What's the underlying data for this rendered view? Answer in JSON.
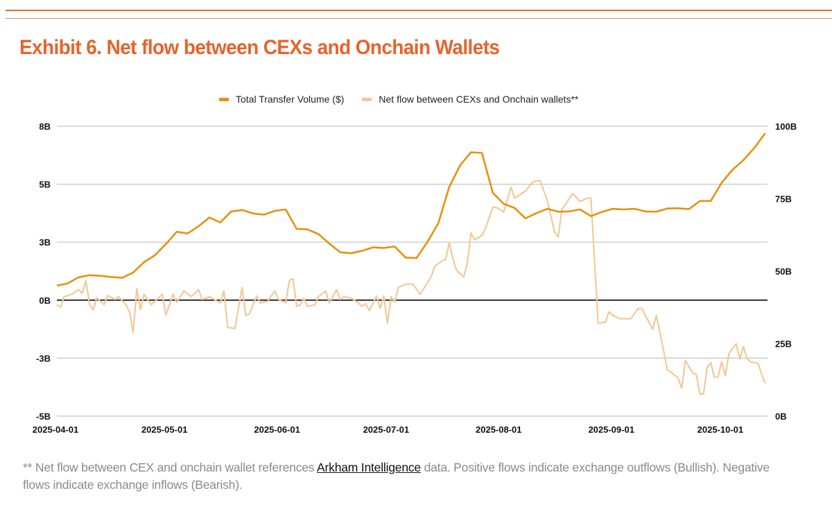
{
  "header": {
    "title": "Exhibit 6. Net flow between CEXs and Onchain Wallets"
  },
  "footer": {
    "prefix": "** Net flow between CEX and onchain wallet references ",
    "link_text": "Arkham Intelligence",
    "suffix": " data. Positive flows indicate exchange outflows (Bullish). Negative flows indicate exchange inflows (Bearish)."
  },
  "chart_data": {
    "type": "line",
    "title": "",
    "xlabel": "",
    "ylabel": "",
    "xlim": [
      "2025-04-01",
      "2025-10-14"
    ],
    "x_ticks": [
      "2025-04-01",
      "2025-05-01",
      "2025-06-01",
      "2025-07-01",
      "2025-08-01",
      "2025-09-01",
      "2025-10-01"
    ],
    "y_left": {
      "lim": [
        -5,
        7.5
      ],
      "ticks": [
        7.5,
        5,
        2.5,
        0,
        -2.5,
        -5
      ],
      "tick_labels": [
        "8B",
        "5B",
        "3B",
        "0B",
        "-3B",
        "-5B"
      ],
      "unit": "B"
    },
    "y_right": {
      "lim": [
        0,
        100
      ],
      "ticks": [
        100,
        75,
        50,
        25,
        0
      ],
      "tick_labels": [
        "100B",
        "75B",
        "50B",
        "25B",
        "0B"
      ],
      "unit": "B"
    },
    "grid": true,
    "zero_line": true,
    "legend_position": "top",
    "series": [
      {
        "name": "Total Transfer Volume ($)",
        "axis": "right",
        "color": "#e8900c",
        "points": [
          [
            "2025-04-01",
            45.0
          ],
          [
            "2025-04-04",
            45.8
          ],
          [
            "2025-04-07",
            47.9
          ],
          [
            "2025-04-10",
            48.6
          ],
          [
            "2025-04-13",
            48.4
          ],
          [
            "2025-04-16",
            48.0
          ],
          [
            "2025-04-19",
            47.7
          ],
          [
            "2025-04-22",
            49.5
          ],
          [
            "2025-04-25",
            53.1
          ],
          [
            "2025-04-28",
            55.5
          ],
          [
            "2025-05-01",
            59.3
          ],
          [
            "2025-05-04",
            63.6
          ],
          [
            "2025-05-07",
            63.0
          ],
          [
            "2025-05-10",
            65.5
          ],
          [
            "2025-05-13",
            68.5
          ],
          [
            "2025-05-16",
            66.8
          ],
          [
            "2025-05-19",
            70.6
          ],
          [
            "2025-05-22",
            71.1
          ],
          [
            "2025-05-25",
            69.9
          ],
          [
            "2025-05-28",
            69.5
          ],
          [
            "2025-05-31",
            70.8
          ],
          [
            "2025-06-03",
            71.3
          ],
          [
            "2025-06-06",
            64.6
          ],
          [
            "2025-06-09",
            64.4
          ],
          [
            "2025-06-12",
            62.8
          ],
          [
            "2025-06-15",
            59.5
          ],
          [
            "2025-06-18",
            56.5
          ],
          [
            "2025-06-21",
            56.2
          ],
          [
            "2025-06-24",
            57.0
          ],
          [
            "2025-06-27",
            58.2
          ],
          [
            "2025-06-30",
            58.0
          ],
          [
            "2025-07-03",
            58.5
          ],
          [
            "2025-07-06",
            54.7
          ],
          [
            "2025-07-09",
            54.5
          ],
          [
            "2025-07-12",
            60.1
          ],
          [
            "2025-07-15",
            66.5
          ],
          [
            "2025-07-18",
            79.0
          ],
          [
            "2025-07-21",
            86.5
          ],
          [
            "2025-07-24",
            91.0
          ],
          [
            "2025-07-27",
            90.8
          ],
          [
            "2025-07-30",
            77.0
          ],
          [
            "2025-08-02",
            73.2
          ],
          [
            "2025-08-05",
            71.8
          ],
          [
            "2025-08-08",
            68.2
          ],
          [
            "2025-08-11",
            70.0
          ],
          [
            "2025-08-14",
            71.5
          ],
          [
            "2025-08-17",
            70.5
          ],
          [
            "2025-08-20",
            70.6
          ],
          [
            "2025-08-23",
            71.3
          ],
          [
            "2025-08-26",
            69.0
          ],
          [
            "2025-08-29",
            70.4
          ],
          [
            "2025-09-01",
            71.5
          ],
          [
            "2025-09-04",
            71.3
          ],
          [
            "2025-09-07",
            71.5
          ],
          [
            "2025-09-10",
            70.6
          ],
          [
            "2025-09-13",
            70.5
          ],
          [
            "2025-09-16",
            71.6
          ],
          [
            "2025-09-19",
            71.7
          ],
          [
            "2025-09-22",
            71.4
          ],
          [
            "2025-09-25",
            74.2
          ],
          [
            "2025-09-28",
            74.2
          ],
          [
            "2025-10-01",
            80.5
          ],
          [
            "2025-10-04",
            85.0
          ],
          [
            "2025-10-07",
            88.3
          ],
          [
            "2025-10-10",
            92.5
          ],
          [
            "2025-10-13",
            97.6
          ]
        ]
      },
      {
        "name": "Net flow between CEXs and Onchain wallets**",
        "axis": "left",
        "color": "#f3c899",
        "points": [
          [
            "2025-04-01",
            -0.2
          ],
          [
            "2025-04-02",
            -0.3
          ],
          [
            "2025-04-03",
            0.15
          ],
          [
            "2025-04-05",
            0.25
          ],
          [
            "2025-04-07",
            0.45
          ],
          [
            "2025-04-08",
            0.3
          ],
          [
            "2025-04-09",
            0.84
          ],
          [
            "2025-04-10",
            -0.2
          ],
          [
            "2025-04-11",
            -0.42
          ],
          [
            "2025-04-12",
            0.1
          ],
          [
            "2025-04-14",
            -0.2
          ],
          [
            "2025-04-15",
            0.2
          ],
          [
            "2025-04-17",
            0.03
          ],
          [
            "2025-04-18",
            0.15
          ],
          [
            "2025-04-20",
            -0.2
          ],
          [
            "2025-04-21",
            -0.5
          ],
          [
            "2025-04-22",
            -1.4
          ],
          [
            "2025-04-23",
            0.5
          ],
          [
            "2025-04-24",
            -0.4
          ],
          [
            "2025-04-25",
            0.25
          ],
          [
            "2025-04-27",
            -0.2
          ],
          [
            "2025-04-30",
            0.25
          ],
          [
            "2025-05-01",
            -0.65
          ],
          [
            "2025-05-03",
            0.25
          ],
          [
            "2025-05-04",
            -0.1
          ],
          [
            "2025-05-06",
            0.4
          ],
          [
            "2025-05-08",
            0.15
          ],
          [
            "2025-05-10",
            0.45
          ],
          [
            "2025-05-11",
            0.03
          ],
          [
            "2025-05-13",
            0.15
          ],
          [
            "2025-05-16",
            -0.12
          ],
          [
            "2025-05-17",
            0.4
          ],
          [
            "2025-05-18",
            -1.17
          ],
          [
            "2025-05-20",
            -1.23
          ],
          [
            "2025-05-22",
            0.54
          ],
          [
            "2025-05-23",
            -0.66
          ],
          [
            "2025-05-24",
            -0.6
          ],
          [
            "2025-05-26",
            0.18
          ],
          [
            "2025-05-27",
            -0.12
          ],
          [
            "2025-05-29",
            -0.06
          ],
          [
            "2025-05-30",
            0.18
          ],
          [
            "2025-05-31",
            0.4
          ],
          [
            "2025-06-01",
            0.03
          ],
          [
            "2025-06-03",
            -0.12
          ],
          [
            "2025-06-04",
            0.84
          ],
          [
            "2025-06-05",
            0.93
          ],
          [
            "2025-06-06",
            -0.27
          ],
          [
            "2025-06-07",
            -0.21
          ],
          [
            "2025-06-08",
            0.09
          ],
          [
            "2025-06-09",
            -0.27
          ],
          [
            "2025-06-11",
            -0.21
          ],
          [
            "2025-06-12",
            0.15
          ],
          [
            "2025-06-14",
            0.39
          ],
          [
            "2025-06-15",
            -0.12
          ],
          [
            "2025-06-17",
            0.45
          ],
          [
            "2025-06-18",
            0.03
          ],
          [
            "2025-06-19",
            0.15
          ],
          [
            "2025-06-21",
            0.09
          ],
          [
            "2025-06-23",
            -0.12
          ],
          [
            "2025-06-24",
            -0.27
          ],
          [
            "2025-06-25",
            -0.15
          ],
          [
            "2025-06-26",
            -0.45
          ],
          [
            "2025-06-28",
            0.18
          ],
          [
            "2025-06-29",
            -0.36
          ],
          [
            "2025-06-30",
            0.18
          ],
          [
            "2025-07-01",
            -1.0
          ],
          [
            "2025-07-02",
            0.15
          ],
          [
            "2025-07-03",
            -0.09
          ],
          [
            "2025-07-04",
            0.54
          ],
          [
            "2025-07-06",
            0.69
          ],
          [
            "2025-07-08",
            0.69
          ],
          [
            "2025-07-10",
            0.25
          ],
          [
            "2025-07-11",
            0.5
          ],
          [
            "2025-07-13",
            1.0
          ],
          [
            "2025-07-14",
            1.44
          ],
          [
            "2025-07-16",
            1.7
          ],
          [
            "2025-07-17",
            1.75
          ],
          [
            "2025-07-18",
            2.48
          ],
          [
            "2025-07-19",
            1.8
          ],
          [
            "2025-07-20",
            1.29
          ],
          [
            "2025-07-22",
            1.0
          ],
          [
            "2025-07-23",
            1.6
          ],
          [
            "2025-07-24",
            2.9
          ],
          [
            "2025-07-25",
            2.6
          ],
          [
            "2025-07-27",
            2.8
          ],
          [
            "2025-07-28",
            3.1
          ],
          [
            "2025-07-30",
            4.0
          ],
          [
            "2025-07-31",
            4.0
          ],
          [
            "2025-08-02",
            3.8
          ],
          [
            "2025-08-04",
            4.87
          ],
          [
            "2025-08-05",
            4.4
          ],
          [
            "2025-08-08",
            4.7
          ],
          [
            "2025-08-10",
            5.1
          ],
          [
            "2025-08-12",
            5.17
          ],
          [
            "2025-08-14",
            4.3
          ],
          [
            "2025-08-16",
            2.93
          ],
          [
            "2025-08-17",
            2.72
          ],
          [
            "2025-08-18",
            3.9
          ],
          [
            "2025-08-21",
            4.6
          ],
          [
            "2025-08-23",
            4.25
          ],
          [
            "2025-08-25",
            4.4
          ],
          [
            "2025-08-26",
            4.4
          ],
          [
            "2025-08-28",
            -1.0
          ],
          [
            "2025-08-30",
            -0.95
          ],
          [
            "2025-08-31",
            -0.5
          ],
          [
            "2025-09-01",
            -0.66
          ],
          [
            "2025-09-03",
            -0.8
          ],
          [
            "2025-09-06",
            -0.8
          ],
          [
            "2025-09-08",
            -0.36
          ],
          [
            "2025-09-09",
            -0.36
          ],
          [
            "2025-09-11",
            -0.96
          ],
          [
            "2025-09-12",
            -1.25
          ],
          [
            "2025-09-13",
            -0.66
          ],
          [
            "2025-09-14",
            -1.4
          ],
          [
            "2025-09-15",
            -2.15
          ],
          [
            "2025-09-16",
            -3.0
          ],
          [
            "2025-09-17",
            -3.11
          ],
          [
            "2025-09-19",
            -3.35
          ],
          [
            "2025-09-20",
            -3.8
          ],
          [
            "2025-09-21",
            -2.6
          ],
          [
            "2025-09-23",
            -3.14
          ],
          [
            "2025-09-24",
            -3.2
          ],
          [
            "2025-09-25",
            -4.04
          ],
          [
            "2025-09-26",
            -4.04
          ],
          [
            "2025-09-27",
            -2.9
          ],
          [
            "2025-09-28",
            -2.7
          ],
          [
            "2025-09-29",
            -3.32
          ],
          [
            "2025-09-30",
            -3.32
          ],
          [
            "2025-10-01",
            -2.66
          ],
          [
            "2025-10-02",
            -3.26
          ],
          [
            "2025-10-03",
            -2.3
          ],
          [
            "2025-10-05",
            -1.88
          ],
          [
            "2025-10-06",
            -2.54
          ],
          [
            "2025-10-07",
            -2.0
          ],
          [
            "2025-10-08",
            -2.54
          ],
          [
            "2025-10-09",
            -2.66
          ],
          [
            "2025-10-11",
            -2.72
          ],
          [
            "2025-10-12",
            -3.2
          ],
          [
            "2025-10-13",
            -3.59
          ]
        ]
      }
    ]
  }
}
